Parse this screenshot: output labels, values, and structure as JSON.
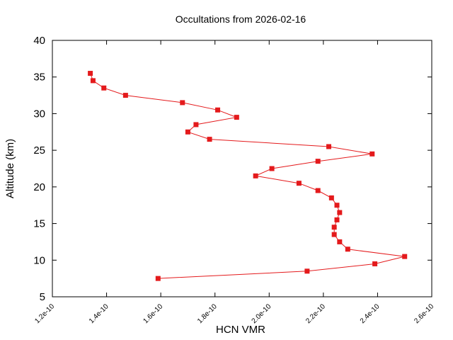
{
  "chart_data": {
    "type": "line",
    "title": "Occultations from 2026-02-16",
    "xlabel": "HCN VMR",
    "ylabel": "Altitude (km)",
    "xlim": [
      1.2e-10,
      2.6e-10
    ],
    "ylim": [
      5,
      40
    ],
    "x_ticks": [
      1.2e-10,
      1.4e-10,
      1.6e-10,
      1.8e-10,
      2e-10,
      2.2e-10,
      2.4e-10,
      2.6e-10
    ],
    "x_tick_labels": [
      "1.2e-10",
      "1.4e-10",
      "1.6e-10",
      "1.8e-10",
      "2.0e-10",
      "2.2e-10",
      "2.4e-10",
      "2.6e-10"
    ],
    "y_ticks": [
      5,
      10,
      15,
      20,
      25,
      30,
      35,
      40
    ],
    "y_tick_labels": [
      "5",
      "10",
      "15",
      "20",
      "25",
      "30",
      "35",
      "40"
    ],
    "grid": false,
    "series": [
      {
        "color": "#e41a1c",
        "marker": "square",
        "points": [
          {
            "x": 1.34e-10,
            "y": 35.5
          },
          {
            "x": 1.35e-10,
            "y": 34.5
          },
          {
            "x": 1.39e-10,
            "y": 33.5
          },
          {
            "x": 1.47e-10,
            "y": 32.5
          },
          {
            "x": 1.68e-10,
            "y": 31.5
          },
          {
            "x": 1.81e-10,
            "y": 30.5
          },
          {
            "x": 1.88e-10,
            "y": 29.5
          },
          {
            "x": 1.73e-10,
            "y": 28.5
          },
          {
            "x": 1.7e-10,
            "y": 27.5
          },
          {
            "x": 1.78e-10,
            "y": 26.5
          },
          {
            "x": 2.22e-10,
            "y": 25.5
          },
          {
            "x": 2.38e-10,
            "y": 24.5
          },
          {
            "x": 2.18e-10,
            "y": 23.5
          },
          {
            "x": 2.01e-10,
            "y": 22.5
          },
          {
            "x": 1.95e-10,
            "y": 21.5
          },
          {
            "x": 2.11e-10,
            "y": 20.5
          },
          {
            "x": 2.18e-10,
            "y": 19.5
          },
          {
            "x": 2.23e-10,
            "y": 18.5
          },
          {
            "x": 2.25e-10,
            "y": 17.5
          },
          {
            "x": 2.26e-10,
            "y": 16.5
          },
          {
            "x": 2.25e-10,
            "y": 15.5
          },
          {
            "x": 2.24e-10,
            "y": 14.5
          },
          {
            "x": 2.24e-10,
            "y": 13.5
          },
          {
            "x": 2.26e-10,
            "y": 12.5
          },
          {
            "x": 2.29e-10,
            "y": 11.5
          },
          {
            "x": 2.5e-10,
            "y": 10.5
          },
          {
            "x": 2.39e-10,
            "y": 9.5
          },
          {
            "x": 2.14e-10,
            "y": 8.5
          },
          {
            "x": 1.59e-10,
            "y": 7.5
          }
        ]
      }
    ]
  }
}
